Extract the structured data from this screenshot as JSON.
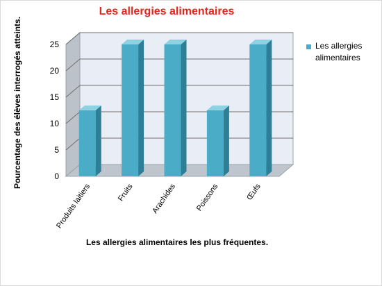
{
  "chart_data": {
    "type": "bar",
    "title": "Les allergies alimentaires",
    "xlabel": "Les allergies alimentaires les plus fréquentes.",
    "ylabel": "Pourcentage des élèves interrogés atteints.",
    "categories": [
      "Produits laitiers",
      "Fruits",
      "Arachides",
      "Poissons",
      "Œufs"
    ],
    "series": [
      {
        "name": "Les allergies alimentaires",
        "values": [
          12.5,
          25,
          25,
          12.5,
          25
        ],
        "color": "#4aacc6"
      }
    ],
    "ylim": [
      0,
      25
    ],
    "yticks": [
      "0",
      "5",
      "10",
      "15",
      "20",
      "25"
    ],
    "grid": true,
    "legend_position": "right",
    "style": "3d-column"
  }
}
